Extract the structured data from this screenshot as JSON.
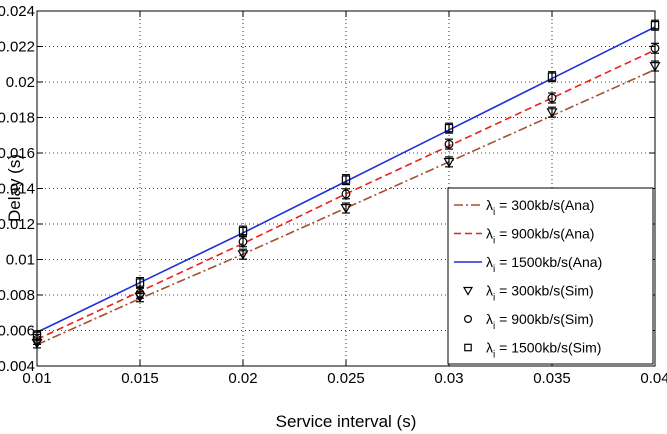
{
  "chart_data": {
    "type": "line",
    "title": "",
    "xlabel": "Service interval (s)",
    "ylabel": "Delay (s)",
    "xlim": [
      0.01,
      0.04
    ],
    "ylim": [
      0.004,
      0.024
    ],
    "grid": true,
    "legend_position": "bottom-right",
    "x_ticks": [
      "0.01",
      "0.015",
      "0.02",
      "0.025",
      "0.03",
      "0.035",
      "0.04"
    ],
    "y_ticks": [
      "0.004",
      "0.006",
      "0.008",
      "0.01",
      "0.012",
      "0.014",
      "0.016",
      "0.018",
      "0.02",
      "0.022",
      "0.024"
    ],
    "x": [
      0.01,
      0.015,
      0.02,
      0.025,
      0.03,
      0.035,
      0.04
    ],
    "series": [
      {
        "name": "λ",
        "sub": "i",
        "suffix": " = 300kb/s(Ana)",
        "kind": "line",
        "color": "#a0522d",
        "dash": "9,3,2,3",
        "values": [
          0.0052,
          0.0078,
          0.0103,
          0.0129,
          0.0155,
          0.0181,
          0.0207
        ]
      },
      {
        "name": "λ",
        "sub": "i",
        "suffix": " = 900kb/s(Ana)",
        "kind": "line",
        "color": "#e8221b",
        "dash": "7,4",
        "values": [
          0.0055,
          0.0082,
          0.0109,
          0.0137,
          0.0164,
          0.0191,
          0.0218
        ]
      },
      {
        "name": "λ",
        "sub": "i",
        "suffix": " = 1500kb/s(Ana)",
        "kind": "line",
        "color": "#1f2fd8",
        "dash": "",
        "values": [
          0.0059,
          0.0087,
          0.0115,
          0.0144,
          0.0173,
          0.0202,
          0.0231
        ]
      },
      {
        "name": "λ",
        "sub": "i",
        "suffix": " = 300kb/s(Sim)",
        "kind": "marker",
        "marker": "triangle-down",
        "color": "#000000",
        "values": [
          0.0053,
          0.0079,
          0.0103,
          0.0129,
          0.0155,
          0.0183,
          0.0209
        ],
        "err": 0.00028
      },
      {
        "name": "λ",
        "sub": "i",
        "suffix": " = 900kb/s(Sim)",
        "kind": "marker",
        "marker": "circle",
        "color": "#000000",
        "values": [
          0.0055,
          0.0081,
          0.011,
          0.0137,
          0.0165,
          0.0191,
          0.0219
        ],
        "err": 0.00028
      },
      {
        "name": "λ",
        "sub": "i",
        "suffix": " = 1500kb/s(Sim)",
        "kind": "marker",
        "marker": "square",
        "color": "#000000",
        "values": [
          0.0057,
          0.0087,
          0.0116,
          0.0145,
          0.0174,
          0.0203,
          0.0232
        ],
        "err": 0.00028
      }
    ]
  }
}
